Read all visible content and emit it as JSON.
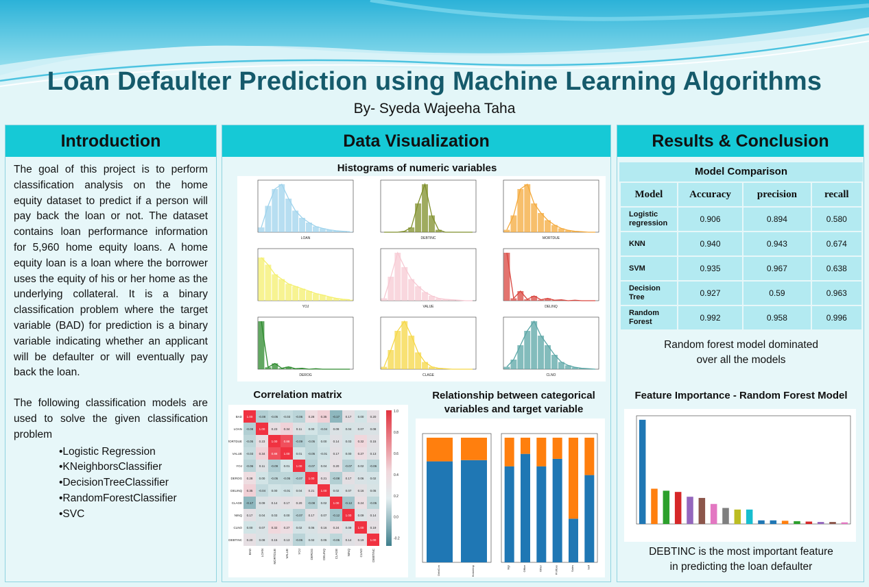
{
  "header": {
    "title": "Loan Defaulter Prediction using Machine Learning Algorithms",
    "author": "By- Syeda Wajeeha Taha"
  },
  "intro": {
    "heading": "Introduction",
    "p1": "The goal of this project is to perform classification analysis on the home equity dataset to predict if a person will pay back the loan or not. The dataset contains loan performance information for 5,960 home equity loans. A home equity loan is a loan where the borrower uses the equity of his or her home as the underlying collateral. It is a binary classification problem where the target variable (BAD) for prediction is a binary variable indicating whether an applicant will be defaulter or will eventually pay back the loan.",
    "p2": "The following classification models are used to solve the given classification problem",
    "models": [
      "•Logistic Regression",
      "•KNeighborsClassifier",
      "•DecisionTreeClassifier",
      "•RandomForestClassifier",
      "•SVC"
    ]
  },
  "dataviz": {
    "heading": "Data Visualization",
    "hist_title": "Histograms of numeric variables",
    "hist_labels": [
      "LOAN",
      "DEBTINC",
      "MORTDUE",
      "YOJ",
      "VALUE",
      "DELINQ",
      "DEROG",
      "CLAGE",
      "CLNO"
    ],
    "hist_colors": [
      "#9fd3ec",
      "#7f8f2a",
      "#f4a93b",
      "#f4ef6e",
      "#f7c9d3",
      "#d9463f",
      "#2c8a2c",
      "#f5d746",
      "#5aa6a6"
    ],
    "corr_title": "Correlation matrix",
    "corr_vars": [
      "BAD",
      "LOAN",
      "MORTDUE",
      "VALUE",
      "YOJ",
      "DEROG",
      "DELINQ",
      "CLAGE",
      "NINQ",
      "CLNO",
      "DEBTINC"
    ],
    "corr_values": [
      [
        1.0,
        -0.08,
        -0.05,
        -0.03,
        -0.06,
        0.28,
        0.35,
        -0.17,
        0.17,
        -0.0,
        0.2
      ],
      [
        -0.08,
        1.0,
        0.23,
        0.34,
        0.11,
        -0.0,
        -0.04,
        0.09,
        0.04,
        0.07,
        0.08
      ],
      [
        -0.05,
        0.23,
        1.0,
        0.88,
        -0.09,
        -0.05,
        -0.0,
        0.14,
        0.03,
        0.32,
        0.15
      ],
      [
        -0.03,
        0.34,
        0.88,
        1.0,
        0.01,
        -0.05,
        -0.01,
        0.17,
        -0.0,
        0.27,
        0.13
      ],
      [
        -0.06,
        0.11,
        -0.09,
        0.01,
        1.0,
        -0.07,
        0.04,
        0.2,
        -0.07,
        0.02,
        -0.06
      ],
      [
        0.28,
        -0.0,
        -0.05,
        -0.05,
        -0.07,
        1.0,
        0.21,
        -0.08,
        0.17,
        0.06,
        0.02
      ],
      [
        0.35,
        -0.04,
        -0.0,
        -0.01,
        0.04,
        0.21,
        1.0,
        0.02,
        0.07,
        0.16,
        0.05
      ],
      [
        -0.17,
        0.09,
        0.14,
        0.17,
        0.2,
        -0.08,
        0.02,
        1.0,
        -0.12,
        0.24,
        -0.05
      ],
      [
        0.17,
        0.04,
        0.03,
        -0.0,
        -0.07,
        0.17,
        0.07,
        -0.12,
        1.0,
        0.09,
        0.14
      ],
      [
        -0.0,
        0.07,
        0.32,
        0.27,
        0.02,
        0.06,
        0.16,
        0.24,
        0.09,
        1.0,
        0.19
      ],
      [
        0.2,
        0.08,
        0.15,
        0.13,
        -0.06,
        0.02,
        0.05,
        -0.05,
        0.14,
        0.19,
        1.0
      ]
    ],
    "corr_scale": [
      "1.0",
      "0.8",
      "0.6",
      "0.4",
      "0.2",
      "0.0",
      "-0.2"
    ],
    "rel_title_1": "Relationship between categorical",
    "rel_title_2": "variables and target variable",
    "rel_left": {
      "categories": [
        "DebtCon",
        "HomeImp"
      ],
      "paid": [
        0.81,
        0.82
      ],
      "bad": [
        0.19,
        0.18
      ]
    },
    "rel_right": {
      "categories": [
        "Mgr",
        "Office",
        "Other",
        "ProfExe",
        "Sales",
        "Self"
      ],
      "paid": [
        0.77,
        0.87,
        0.77,
        0.83,
        0.35,
        0.7
      ],
      "bad": [
        0.23,
        0.13,
        0.23,
        0.17,
        0.65,
        0.3
      ]
    },
    "bar_colors": {
      "paid": "#1f77b4",
      "bad": "#ff7f0e"
    }
  },
  "results": {
    "heading": "Results & Conclusion",
    "table_title": "Model Comparison",
    "columns": [
      "Model",
      "Accuracy",
      "precision",
      "recall"
    ],
    "rows": [
      {
        "model": "Logistic regression",
        "acc": "0.906",
        "prec": "0.894",
        "rec": "0.580"
      },
      {
        "model": "KNN",
        "acc": "0.940",
        "prec": "0.943",
        "rec": "0.674"
      },
      {
        "model": "SVM",
        "acc": "0.935",
        "prec": "0.967",
        "rec": "0.638"
      },
      {
        "model": "Decision Tree",
        "acc": "0.927",
        "prec": "0.59",
        "rec": "0.963"
      },
      {
        "model": "Random Forest",
        "acc": "0.992",
        "prec": "0.958",
        "rec": "0.996"
      }
    ],
    "conclusion_1": "Random forest model dominated",
    "conclusion_2": "over all the models",
    "fi_title": "Feature Importance - Random Forest Model",
    "fi_values": [
      0.26,
      0.088,
      0.083,
      0.08,
      0.068,
      0.065,
      0.05,
      0.04,
      0.036,
      0.036,
      0.009,
      0.009,
      0.008,
      0.007,
      0.006,
      0.005,
      0.005,
      0.004
    ],
    "fi_colors": [
      "#1f77b4",
      "#ff7f0e",
      "#2ca02c",
      "#d62728",
      "#9467bd",
      "#8c564b",
      "#e377c2",
      "#7f7f7f",
      "#bcbd22",
      "#17becf",
      "#1f77b4",
      "#1f77b4",
      "#ff7f0e",
      "#2ca02c",
      "#d62728",
      "#9467bd",
      "#8c564b",
      "#e377c2"
    ],
    "fi_text_1": "DEBTINC  is the most important feature",
    "fi_text_2": "in predicting the loan defaulter"
  }
}
